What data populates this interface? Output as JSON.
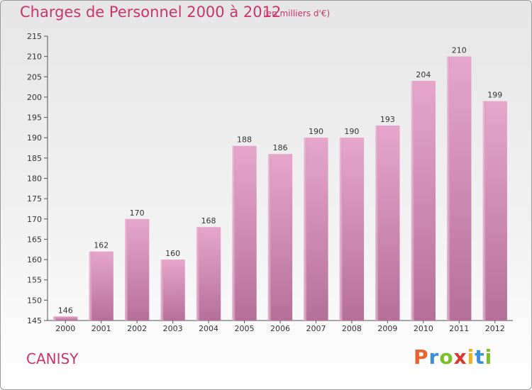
{
  "title": "Charges de Personnel 2000 à 2012",
  "subtitle": "(en milliers d'€)",
  "city": "CANISY",
  "logo": {
    "letters": [
      "P",
      "r",
      "o",
      "x",
      "i",
      "t",
      "i"
    ],
    "colors": [
      "#e8622a",
      "#3a8fd8",
      "#7bbf2a",
      "#d8392e",
      "#f0b020",
      "#3a8fd8",
      "#7bbf2a"
    ]
  },
  "chart_data": {
    "type": "bar",
    "title": "Charges de Personnel 2000 à 2012",
    "subtitle": "(en milliers d'€)",
    "categories": [
      "2000",
      "2001",
      "2002",
      "2003",
      "2004",
      "2005",
      "2006",
      "2007",
      "2008",
      "2009",
      "2010",
      "2011",
      "2012"
    ],
    "values": [
      146,
      162,
      170,
      160,
      168,
      188,
      186,
      190,
      190,
      193,
      204,
      210,
      199
    ],
    "xlabel": "",
    "ylabel": "",
    "ylim": [
      145,
      215
    ],
    "yticks": [
      145,
      150,
      155,
      160,
      165,
      170,
      175,
      180,
      185,
      190,
      195,
      200,
      205,
      210,
      215
    ],
    "grid": false,
    "bar_color": "#d98ab4"
  }
}
